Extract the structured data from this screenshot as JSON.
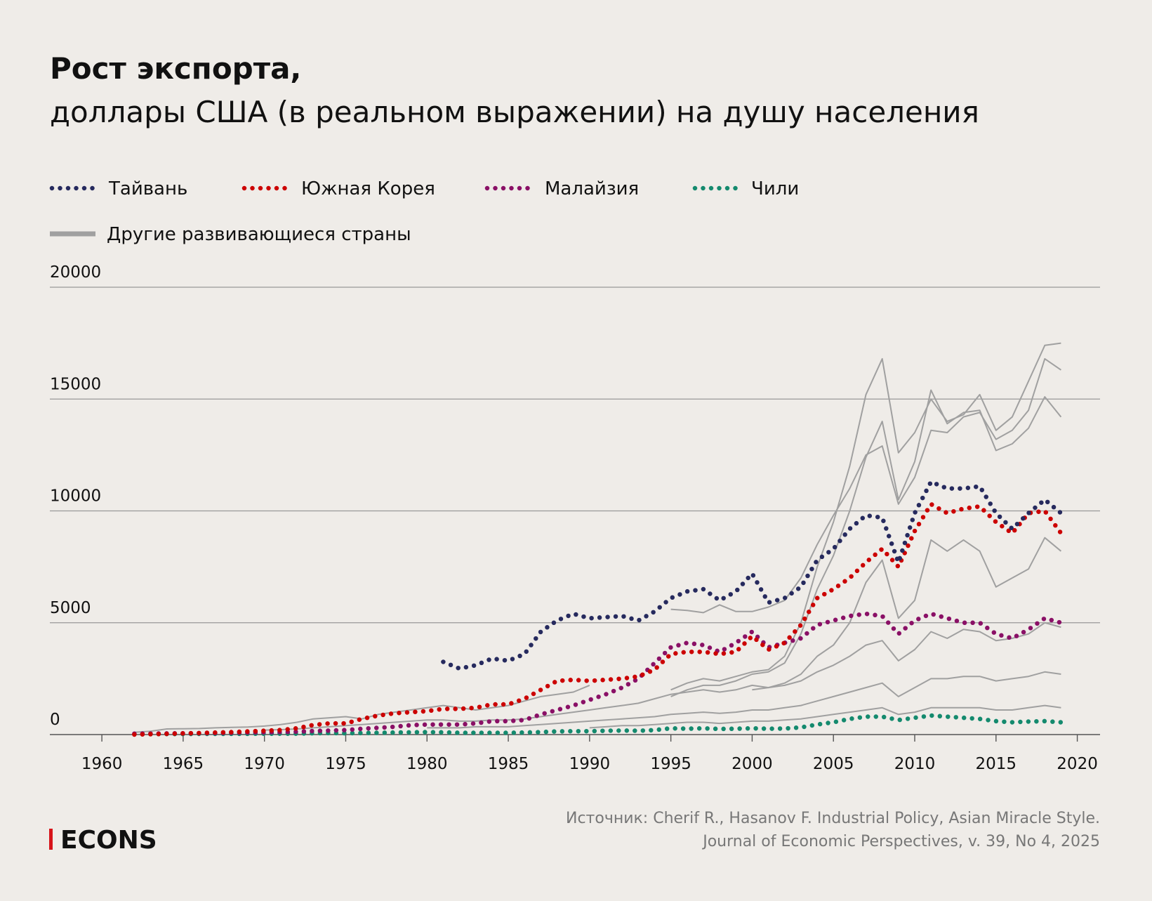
{
  "chart_data": {
    "type": "line",
    "title": "Рост экспорта,",
    "subtitle": "доллары США (в реальном выражении) на душу населения",
    "x": [
      1962,
      1963,
      1964,
      1965,
      1966,
      1967,
      1968,
      1969,
      1970,
      1971,
      1972,
      1973,
      1974,
      1975,
      1976,
      1977,
      1978,
      1979,
      1980,
      1981,
      1982,
      1983,
      1984,
      1985,
      1986,
      1987,
      1988,
      1989,
      1990,
      1991,
      1992,
      1993,
      1994,
      1995,
      1996,
      1997,
      1998,
      1999,
      2000,
      2001,
      2002,
      2003,
      2004,
      2005,
      2006,
      2007,
      2008,
      2009,
      2010,
      2011,
      2012,
      2013,
      2014,
      2015,
      2016,
      2017,
      2018,
      2019
    ],
    "series": [
      {
        "name": "Тайвань",
        "color": "#262a5e",
        "values": [
          null,
          null,
          null,
          null,
          null,
          null,
          null,
          null,
          null,
          null,
          null,
          null,
          null,
          null,
          null,
          null,
          null,
          null,
          null,
          3250,
          2950,
          3100,
          3400,
          3300,
          3600,
          4600,
          5100,
          5400,
          5200,
          5250,
          5300,
          5100,
          5500,
          6100,
          6400,
          6500,
          6000,
          6400,
          7200,
          5900,
          6100,
          6600,
          7800,
          8300,
          9200,
          9800,
          9700,
          7700,
          9900,
          11300,
          11000,
          11000,
          11100,
          9900,
          9200,
          9900,
          10500,
          9900
        ]
      },
      {
        "name": "Южная Корея",
        "color": "#cc0000",
        "values": [
          0,
          20,
          30,
          50,
          70,
          90,
          110,
          140,
          170,
          200,
          280,
          430,
          500,
          500,
          700,
          850,
          950,
          1000,
          1050,
          1150,
          1150,
          1200,
          1350,
          1350,
          1600,
          2000,
          2400,
          2450,
          2400,
          2450,
          2500,
          2600,
          2900,
          3600,
          3700,
          3700,
          3600,
          3700,
          4400,
          3800,
          4100,
          4900,
          6100,
          6500,
          7000,
          7700,
          8300,
          7500,
          9100,
          10300,
          9900,
          10100,
          10200,
          9500,
          9000,
          9900,
          10000,
          9000
        ]
      },
      {
        "name": "Малайзия",
        "color": "#8a1066",
        "values": [
          40,
          45,
          50,
          55,
          60,
          70,
          80,
          90,
          100,
          110,
          130,
          160,
          180,
          200,
          260,
          300,
          350,
          420,
          450,
          450,
          450,
          500,
          600,
          600,
          650,
          900,
          1100,
          1300,
          1550,
          1800,
          2100,
          2500,
          3200,
          3900,
          4100,
          4000,
          3700,
          4100,
          4600,
          3900,
          4100,
          4300,
          4900,
          5100,
          5300,
          5400,
          5300,
          4500,
          5100,
          5400,
          5200,
          5000,
          5000,
          4500,
          4300,
          4700,
          5200,
          5000
        ]
      },
      {
        "name": "Чили",
        "color": "#148a6e",
        "values": [
          20,
          20,
          25,
          25,
          30,
          30,
          35,
          35,
          40,
          40,
          40,
          60,
          70,
          60,
          70,
          80,
          90,
          100,
          110,
          100,
          80,
          80,
          80,
          80,
          90,
          110,
          140,
          150,
          150,
          170,
          180,
          170,
          200,
          280,
          260,
          280,
          250,
          260,
          280,
          260,
          270,
          320,
          450,
          550,
          700,
          800,
          800,
          650,
          750,
          850,
          800,
          750,
          700,
          600,
          550,
          580,
          600,
          550
        ]
      }
    ],
    "others": {
      "name": "Другие развивающиеся страны",
      "color": "#a0a0a0",
      "lines": [
        {
          "x": [
            1995,
            1996,
            1997,
            1998,
            1999,
            2000,
            2001,
            2002,
            2003,
            2004,
            2005,
            2006,
            2007,
            2008,
            2009,
            2010,
            2011,
            2012,
            2013,
            2014,
            2015,
            2016,
            2017,
            2018,
            2019
          ],
          "values": [
            2000,
            2300,
            2500,
            2400,
            2600,
            2800,
            2900,
            3500,
            5000,
            7500,
            9500,
            12000,
            15200,
            16800,
            12600,
            13500,
            15000,
            14000,
            14300,
            15200,
            13600,
            14200,
            15800,
            17400,
            17500
          ]
        },
        {
          "x": [
            1995,
            1996,
            1997,
            1998,
            1999,
            2000,
            2001,
            2002,
            2003,
            2004,
            2005,
            2006,
            2007,
            2008,
            2009,
            2010,
            2011,
            2012,
            2013,
            2014,
            2015,
            2016,
            2017,
            2018,
            2019
          ],
          "values": [
            1700,
            2000,
            2200,
            2200,
            2400,
            2700,
            2800,
            3200,
            4500,
            6500,
            8000,
            10000,
            12400,
            14000,
            10500,
            12200,
            15400,
            13900,
            14400,
            14500,
            12700,
            13000,
            13700,
            15100,
            14200
          ]
        },
        {
          "x": [
            1995,
            1996,
            1997,
            1998,
            1999,
            2000,
            2001,
            2002,
            2003,
            2004,
            2005,
            2006,
            2007,
            2008,
            2009,
            2010,
            2011,
            2012,
            2013,
            2014,
            2015,
            2016,
            2017,
            2018,
            2019
          ],
          "values": [
            5600,
            5550,
            5450,
            5800,
            5500,
            5500,
            5700,
            6000,
            7000,
            8500,
            9800,
            11000,
            12500,
            12900,
            10300,
            11500,
            13600,
            13500,
            14200,
            14400,
            13200,
            13600,
            14500,
            16800,
            16300
          ]
        },
        {
          "x": [
            2000,
            2001,
            2002,
            2003,
            2004,
            2005,
            2006,
            2007,
            2008,
            2009,
            2010,
            2011,
            2012,
            2013,
            2014,
            2015,
            2016,
            2017,
            2018,
            2019
          ],
          "values": [
            2000,
            2100,
            2300,
            2700,
            3500,
            4000,
            5000,
            6800,
            7800,
            5200,
            6000,
            8700,
            8200,
            8700,
            8200,
            6600,
            7000,
            7400,
            8800,
            8200
          ]
        },
        {
          "x": [
            1962,
            1963,
            1964,
            1965,
            1966,
            1967,
            1968,
            1969,
            1970,
            1971,
            1972,
            1973,
            1974,
            1975,
            1976,
            1977,
            1978,
            1979,
            1980,
            1981,
            1982,
            1983,
            1984,
            1985,
            1986,
            1987,
            1988,
            1989,
            1990
          ],
          "values": [
            100,
            150,
            250,
            260,
            270,
            300,
            320,
            340,
            380,
            450,
            550,
            700,
            750,
            800,
            700,
            900,
            1000,
            1100,
            1200,
            1300,
            1200,
            1100,
            1200,
            1300,
            1500,
            1700,
            1800,
            1900,
            2200
          ]
        },
        {
          "x": [
            1970,
            1971,
            1972,
            1973,
            1974,
            1975,
            1976,
            1977,
            1978,
            1979,
            1980,
            1981,
            1982,
            1983,
            1984,
            1985,
            1986,
            1987,
            1988,
            1989,
            1990,
            1991,
            1992,
            1993,
            1994,
            1995,
            1996,
            1997,
            1998,
            1999,
            2000,
            2001,
            2002,
            2003,
            2004,
            2005,
            2006,
            2007,
            2008,
            2009,
            2010,
            2011,
            2012,
            2013,
            2014,
            2015,
            2016,
            2017,
            2018,
            2019
          ],
          "values": [
            200,
            220,
            250,
            300,
            350,
            400,
            450,
            500,
            550,
            600,
            650,
            650,
            600,
            600,
            650,
            650,
            700,
            800,
            900,
            1000,
            1100,
            1200,
            1300,
            1400,
            1600,
            1800,
            1900,
            2000,
            1900,
            2000,
            2200,
            2100,
            2200,
            2400,
            2800,
            3100,
            3500,
            4000,
            4200,
            3300,
            3800,
            4600,
            4300,
            4700,
            4600,
            4200,
            4300,
            4500,
            5000,
            4800
          ]
        },
        {
          "x": [
            1980,
            1981,
            1982,
            1983,
            1984,
            1985,
            1986,
            1987,
            1988,
            1989,
            1990,
            1991,
            1992,
            1993,
            1994,
            1995,
            1996,
            1997,
            1998,
            1999,
            2000,
            2001,
            2002,
            2003,
            2004,
            2005,
            2006,
            2007,
            2008,
            2009,
            2010,
            2011,
            2012,
            2013,
            2014,
            2015,
            2016,
            2017,
            2018,
            2019
          ],
          "values": [
            300,
            300,
            300,
            350,
            350,
            350,
            400,
            450,
            500,
            550,
            600,
            650,
            700,
            750,
            800,
            900,
            950,
            1000,
            950,
            1000,
            1100,
            1100,
            1200,
            1300,
            1500,
            1700,
            1900,
            2100,
            2300,
            1700,
            2100,
            2500,
            2500,
            2600,
            2600,
            2400,
            2500,
            2600,
            2800,
            2700
          ]
        },
        {
          "x": [
            1990,
            1991,
            1992,
            1993,
            1994,
            1995,
            1996,
            1997,
            1998,
            1999,
            2000,
            2001,
            2002,
            2003,
            2004,
            2005,
            2006,
            2007,
            2008,
            2009,
            2010,
            2011,
            2012,
            2013,
            2014,
            2015,
            2016,
            2017,
            2018,
            2019
          ],
          "values": [
            300,
            350,
            400,
            400,
            450,
            500,
            550,
            550,
            500,
            550,
            600,
            600,
            650,
            700,
            800,
            900,
            1000,
            1100,
            1200,
            900,
            1000,
            1200,
            1200,
            1200,
            1200,
            1100,
            1100,
            1200,
            1300,
            1200
          ]
        }
      ]
    },
    "xlim": [
      1956.8,
      2021.4
    ],
    "xticks": [
      1960,
      1965,
      1970,
      1975,
      1980,
      1985,
      1990,
      1995,
      2000,
      2005,
      2010,
      2015,
      2020
    ],
    "ylim": [
      0,
      20000
    ],
    "yticks": [
      0,
      5000,
      10000,
      15000,
      20000
    ],
    "grid": true,
    "source": [
      "Источник: Cherif R., Hasanov F. Industrial Policy, Asian Miracle Style.",
      "Journal of Economic Perspectives, v. 39, No 4, 2025"
    ],
    "brand": "ECONS"
  }
}
